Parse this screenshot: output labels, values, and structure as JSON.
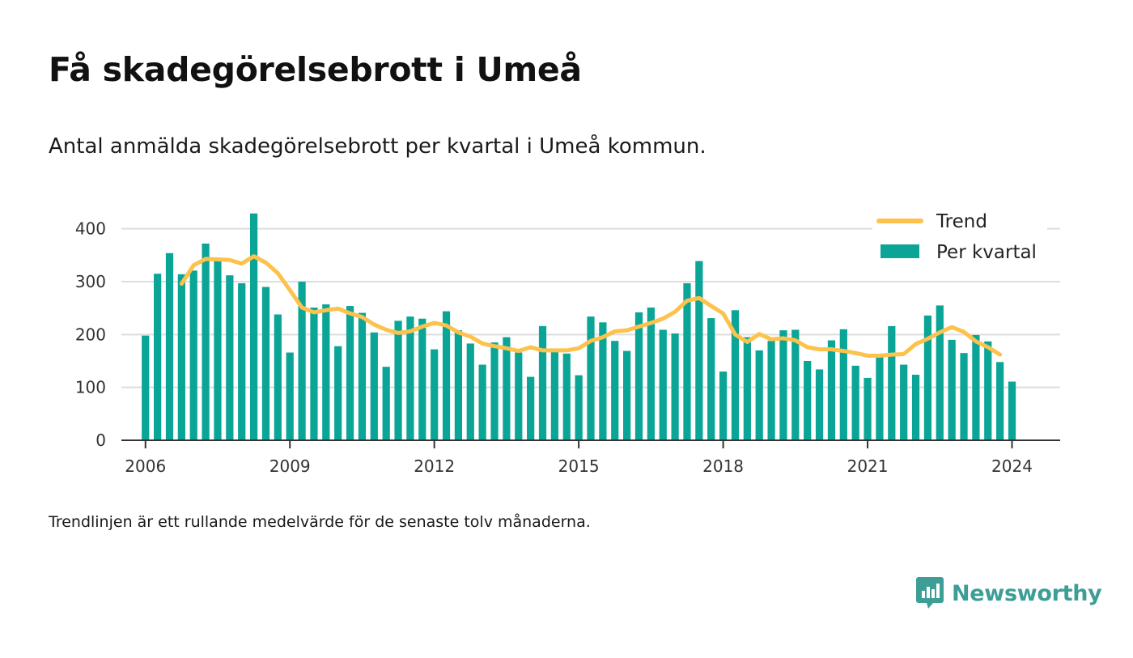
{
  "header": {
    "title": "Få skadegörelsebrott i Umeå",
    "subtitle": "Antal anmälda skadegörelsebrott per kvartal i Umeå kommun."
  },
  "footer": {
    "note": "Trendlinjen är ett rullande medelvärde för de senaste tolv månaderna.",
    "brand": "Newsworthy"
  },
  "colors": {
    "bar": "#0aa597",
    "trend": "#fcc24c",
    "grid": "#dddddd",
    "axis": "#333333",
    "brand": "#3d9e96"
  },
  "chart_data": {
    "type": "bar",
    "title": "Få skadegörelsebrott i Umeå",
    "subtitle": "Antal anmälda skadegörelsebrott per kvartal i Umeå kommun.",
    "xlabel": "",
    "ylabel": "",
    "ylim": [
      0,
      450
    ],
    "yticks": [
      0,
      100,
      200,
      300,
      400
    ],
    "xlim": [
      2005.5,
      2025.0
    ],
    "xticks": [
      2006,
      2009,
      2012,
      2015,
      2018,
      2021,
      2024
    ],
    "grid": true,
    "legend_position": "top-right",
    "legend": [
      "Trend",
      "Per kvartal"
    ],
    "series": [
      {
        "name": "Per kvartal",
        "type": "bar",
        "start": 2006,
        "step": 0.25,
        "values": [
          198,
          315,
          354,
          314,
          321,
          372,
          340,
          312,
          297,
          429,
          290,
          238,
          166,
          300,
          251,
          257,
          178,
          254,
          241,
          204,
          139,
          226,
          234,
          230,
          172,
          244,
          208,
          183,
          143,
          185,
          195,
          166,
          120,
          216,
          170,
          164,
          123,
          234,
          223,
          188,
          169,
          242,
          251,
          209,
          202,
          297,
          339,
          231,
          130,
          246,
          195,
          170,
          188,
          208,
          209,
          150,
          134,
          189,
          210,
          141,
          118,
          160,
          216,
          143,
          124,
          236,
          255,
          190,
          165,
          199,
          187,
          148,
          111
        ]
      },
      {
        "name": "Trend",
        "type": "line",
        "start": 2006.75,
        "step": 0.25,
        "values": [
          296,
          331,
          343,
          342,
          341,
          334,
          348,
          336,
          316,
          284,
          251,
          242,
          246,
          249,
          240,
          233,
          219,
          209,
          203,
          206,
          215,
          222,
          217,
          204,
          196,
          183,
          178,
          174,
          169,
          176,
          170,
          170,
          170,
          174,
          188,
          195,
          206,
          208,
          215,
          222,
          230,
          243,
          264,
          269,
          254,
          240,
          200,
          186,
          201,
          191,
          193,
          189,
          176,
          172,
          172,
          169,
          165,
          160,
          160,
          162,
          163,
          182,
          192,
          204,
          214,
          205,
          187,
          176,
          162
        ]
      }
    ]
  }
}
